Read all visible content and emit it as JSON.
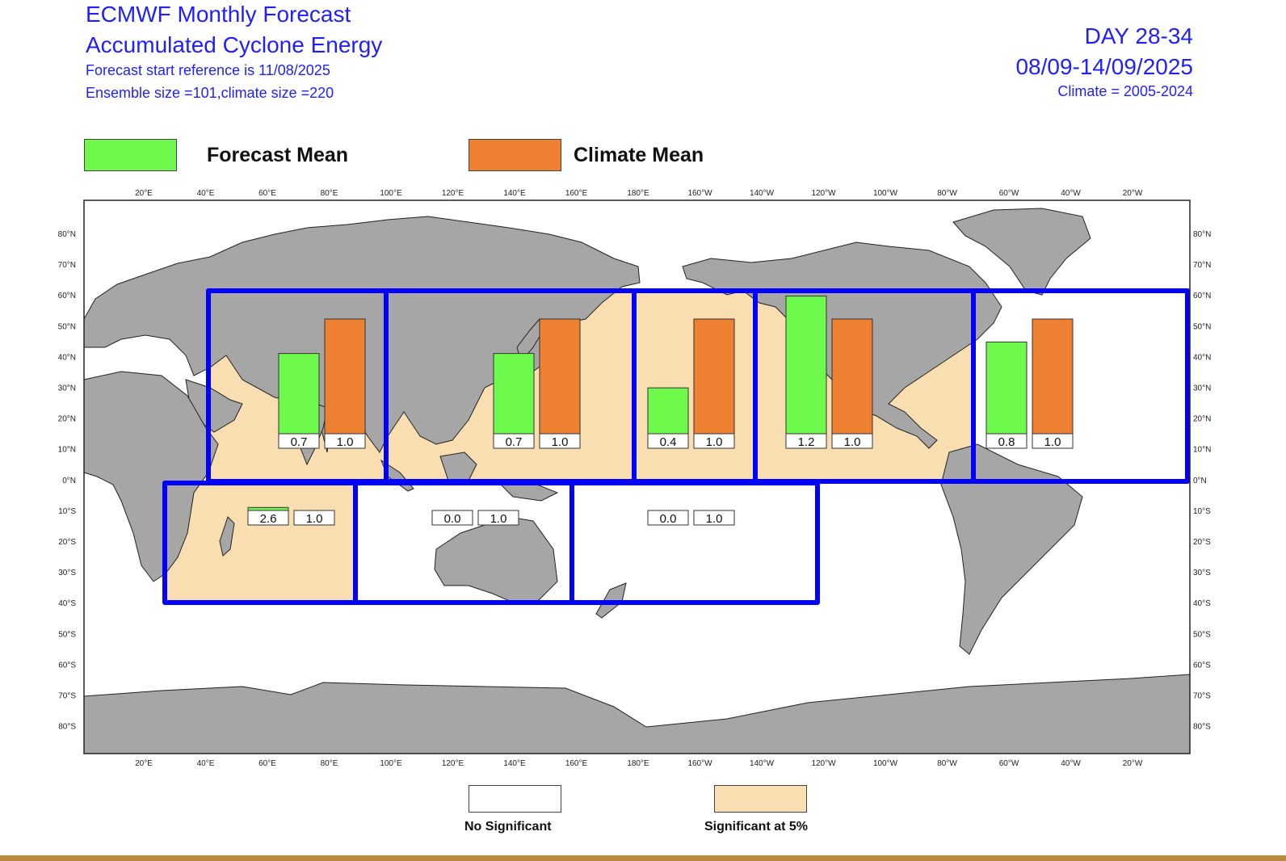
{
  "header": {
    "title_line1": "ECMWF Monthly Forecast",
    "title_line2": "Accumulated Cyclone Energy",
    "forecast_start": "Forecast start reference is 11/08/2025",
    "ensemble": "Ensemble size =101,climate size =220",
    "day_range": "DAY 28-34",
    "date_range": "08/09-14/09/2025",
    "climate_period": "Climate = 2005-2024"
  },
  "legend_top": {
    "forecast_label": "Forecast Mean",
    "climate_label": "Climate Mean",
    "forecast_color": "#6ef94d",
    "climate_color": "#ee8131"
  },
  "legend_bottom": {
    "no_sig_label": "No Significant",
    "sig_label": "Significant at 5%",
    "no_sig_color": "#ffffff",
    "sig_color": "#f8deb0"
  },
  "map": {
    "land_color": "#a6a6a6",
    "basin_outline_color": "#0000ff",
    "lon_ticks": [
      "20°E",
      "40°E",
      "60°E",
      "80°E",
      "100°E",
      "120°E",
      "140°E",
      "160°E",
      "180°E",
      "160°W",
      "140°W",
      "120°W",
      "100°W",
      "80°W",
      "60°W",
      "40°W",
      "20°W"
    ],
    "lat_ticks": [
      "80°N",
      "70°N",
      "60°N",
      "50°N",
      "40°N",
      "30°N",
      "20°N",
      "10°N",
      "0°N",
      "10°S",
      "20°S",
      "30°S",
      "40°S",
      "50°S",
      "60°S",
      "70°S",
      "80°S"
    ]
  },
  "chart_data": {
    "type": "bar",
    "title": "Accumulated Cyclone Energy",
    "ylim": [
      0,
      3
    ],
    "series": [
      {
        "name": "Forecast Mean",
        "color": "#6ef94d"
      },
      {
        "name": "Climate Mean",
        "color": "#ee8131"
      }
    ],
    "basins": [
      {
        "forecast": 0.7,
        "climate": 1.0,
        "forecast_label": "0.7",
        "climate_label": "1.0",
        "significant": true
      },
      {
        "forecast": 0.7,
        "climate": 1.0,
        "forecast_label": "0.7",
        "climate_label": "1.0",
        "significant": true
      },
      {
        "forecast": 0.4,
        "climate": 1.0,
        "forecast_label": "0.4",
        "climate_label": "1.0",
        "significant": true
      },
      {
        "forecast": 1.2,
        "climate": 1.0,
        "forecast_label": "1.2",
        "climate_label": "1.0",
        "significant": true
      },
      {
        "forecast": 0.8,
        "climate": 1.0,
        "forecast_label": "0.8",
        "climate_label": "1.0",
        "significant": false
      },
      {
        "forecast": 2.6,
        "climate": 1.0,
        "forecast_label": "2.6",
        "climate_label": "1.0",
        "significant": true
      },
      {
        "forecast": 0.0,
        "climate": 1.0,
        "forecast_label": "0.0",
        "climate_label": "1.0",
        "significant": false
      },
      {
        "forecast": 0.0,
        "climate": 1.0,
        "forecast_label": "0.0",
        "climate_label": "1.0",
        "significant": false
      }
    ]
  }
}
